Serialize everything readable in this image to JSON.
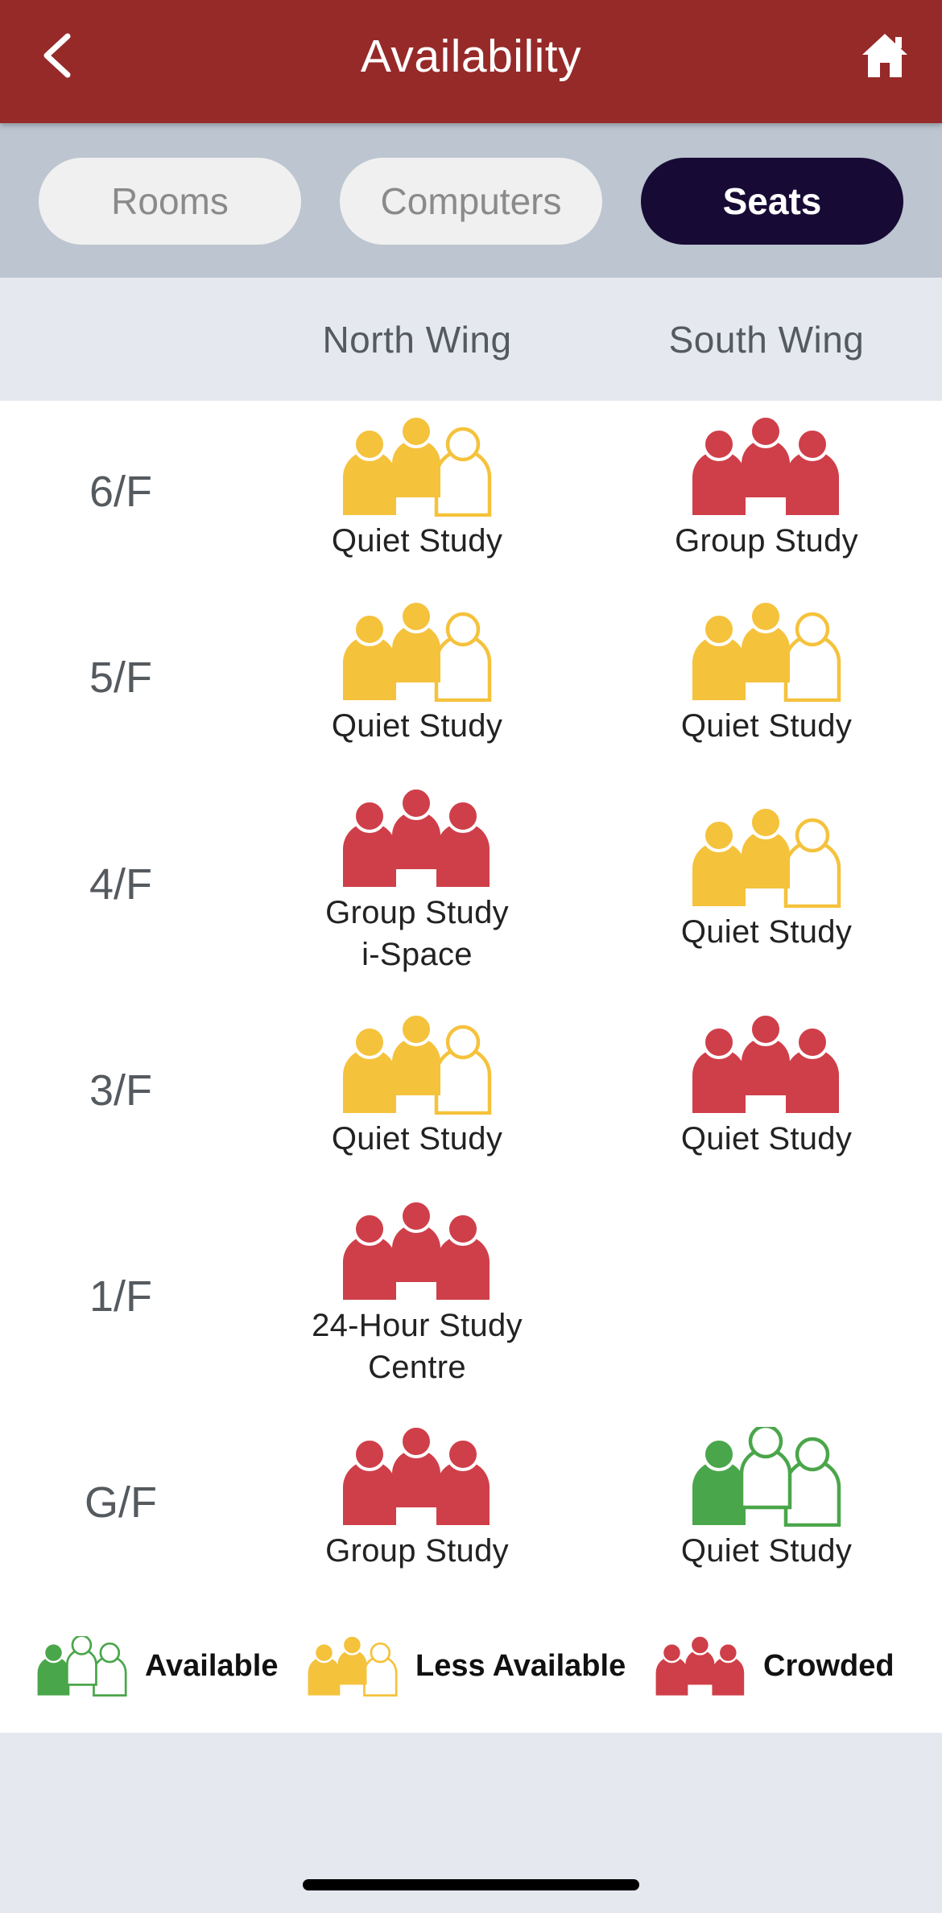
{
  "header": {
    "title": "Availability",
    "back_icon": "chevron-left-icon",
    "home_icon": "home-icon"
  },
  "tabs": [
    {
      "label": "Rooms",
      "active": false
    },
    {
      "label": "Computers",
      "active": false
    },
    {
      "label": "Seats",
      "active": true
    }
  ],
  "columns": {
    "north": "North Wing",
    "south": "South Wing"
  },
  "colors": {
    "available": "#4aa64a",
    "less_available": "#f5c23c",
    "crowded": "#cf3f49",
    "header": "#962a29",
    "active_tab": "#170b35"
  },
  "floors": [
    {
      "floor": "6/F",
      "north": {
        "status": "less_available",
        "label": "Quiet Study"
      },
      "south": {
        "status": "crowded",
        "label": "Group Study"
      }
    },
    {
      "floor": "5/F",
      "north": {
        "status": "less_available",
        "label": "Quiet Study"
      },
      "south": {
        "status": "less_available",
        "label": "Quiet Study"
      }
    },
    {
      "floor": "4/F",
      "north": {
        "status": "crowded",
        "label": "Group Study\ni-Space"
      },
      "south": {
        "status": "less_available",
        "label": "Quiet Study"
      }
    },
    {
      "floor": "3/F",
      "north": {
        "status": "less_available",
        "label": "Quiet Study"
      },
      "south": {
        "status": "crowded",
        "label": "Quiet Study"
      }
    },
    {
      "floor": "1/F",
      "north": {
        "status": "crowded",
        "label": "24-Hour Study\nCentre"
      },
      "south": null
    },
    {
      "floor": "G/F",
      "north": {
        "status": "crowded",
        "label": "Group Study"
      },
      "south": {
        "status": "available",
        "label": "Quiet Study"
      }
    }
  ],
  "legend": [
    {
      "status": "available",
      "label": "Available"
    },
    {
      "status": "less_available",
      "label": "Less Available"
    },
    {
      "status": "crowded",
      "label": "Crowded"
    }
  ]
}
